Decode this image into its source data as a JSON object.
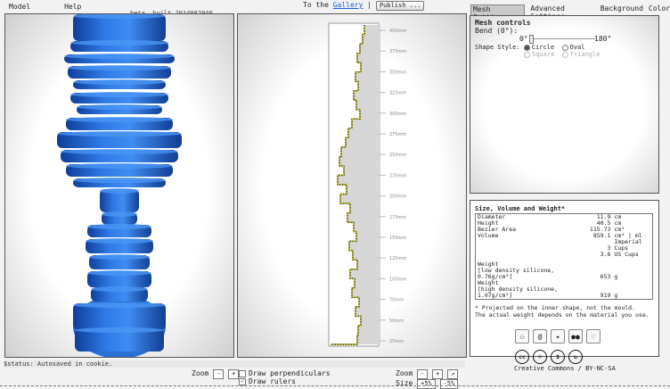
{
  "menu": {
    "model": "Model",
    "help": "Help"
  },
  "beta": "beta, built 2014082940",
  "header": {
    "to_the": "To the",
    "gallery": "Gallery",
    "sep": "|",
    "publish": "Publish ..."
  },
  "tabs": [
    "Mesh Settings",
    "Advanced Settings",
    "Background",
    "Color"
  ],
  "mesh_controls": {
    "title": "Mesh controls",
    "bend_label": "Bend (0°):",
    "bend_min": "0°",
    "bend_max": "180°",
    "bend_value": 0,
    "shape_style_label": "Shape Style:",
    "shapes": [
      {
        "label": "Circle",
        "selected": true,
        "enabled": true
      },
      {
        "label": "Oval",
        "selected": false,
        "enabled": true
      },
      {
        "label": "Square",
        "selected": false,
        "enabled": false
      },
      {
        "label": "Triangle",
        "selected": false,
        "enabled": false
      }
    ]
  },
  "info": {
    "title": "Size, Volume and Weight*",
    "diameter": {
      "label": "Diameter",
      "value": "11.9",
      "unit": "cm"
    },
    "height": {
      "label": "Height",
      "value": "40.5",
      "unit": "cm"
    },
    "bezier": {
      "label": "Bezier Area",
      "value": "115.73",
      "unit": "cm²"
    },
    "volume": {
      "label": "Volume",
      "value": "859.1",
      "unit": "cm³ | ml"
    },
    "imperial_unit": "Imperial",
    "cups_value": "3",
    "cups_unit": "Cups",
    "us_cups_value": "3.6",
    "us_cups_unit": "US Cups",
    "weight_low_l1": "Weight",
    "weight_low_l2": "[low density silicone,",
    "weight_low_l3": "0.76g/cm³]",
    "weight_low_value": "653",
    "weight_low_unit": "g",
    "weight_high_l1": "Weight",
    "weight_high_l2": "[high density silicone,",
    "weight_high_l3": "1.07g/cm³]",
    "weight_high_value": "919",
    "weight_high_unit": "g",
    "note1": "* Projected on the inner shape, not the mould.",
    "note2": "The actual weight depends on the material you use."
  },
  "share_icons": [
    "github-icon",
    "email-icon",
    "twitter-icon",
    "flickr-icon",
    "diaspora-icon"
  ],
  "license": "Creative Commons / BY-NC-SA",
  "status": "$status: Autosaved in cookie.",
  "bottom": {
    "zoom": "Zoom",
    "minus": "-",
    "plus": "+",
    "draw_perpendiculars": "Draw perpendiculars",
    "draw_rulers": "Draw rulers",
    "rulers_checked": true,
    "zoom2": "Zoom",
    "fit": "↗",
    "size": "Size",
    "size_plus": "+5%",
    "size_minus": "-5%"
  },
  "ruler_labels": [
    "400mm",
    "375mm",
    "350mm",
    "325mm",
    "300mm",
    "275mm",
    "250mm",
    "225mm",
    "200mm",
    "175mm",
    "150mm",
    "125mm",
    "100mm",
    "75mm",
    "50mm",
    "25mm"
  ],
  "colors": {
    "model_blue": "#2a6fd6",
    "profile_yellow": "#e8e000",
    "profile_dark": "#333333"
  }
}
